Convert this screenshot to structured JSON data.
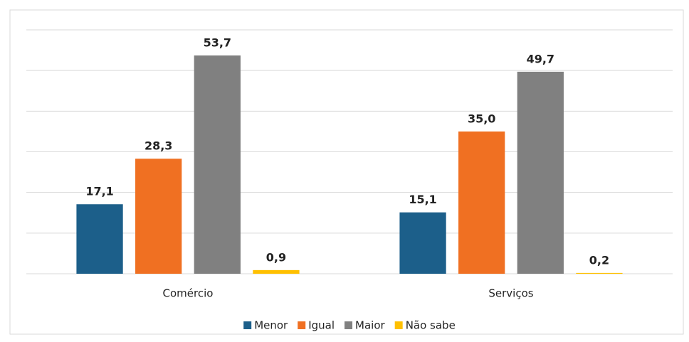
{
  "chart_data": {
    "type": "bar",
    "categories": [
      "Comércio",
      "Serviços"
    ],
    "series": [
      {
        "name": "Menor",
        "color": "#1c5f8a",
        "values": [
          17.1,
          15.1
        ],
        "value_labels": [
          "17,1",
          "15,1"
        ]
      },
      {
        "name": "Igual",
        "color": "#f07022",
        "values": [
          28.3,
          35.0
        ],
        "value_labels": [
          "28,3",
          "35,0"
        ]
      },
      {
        "name": "Maior",
        "color": "#808080",
        "values": [
          53.7,
          49.7
        ],
        "value_labels": [
          "53,7",
          "49,7"
        ]
      },
      {
        "name": "Não sabe",
        "color": "#ffc000",
        "values": [
          0.9,
          0.2
        ],
        "value_labels": [
          "0,9",
          "0,2"
        ]
      }
    ],
    "ylim": [
      0,
      60
    ],
    "yticks": [
      0,
      10,
      20,
      30,
      40,
      50,
      60
    ],
    "grid": true,
    "legend": "bottom"
  }
}
